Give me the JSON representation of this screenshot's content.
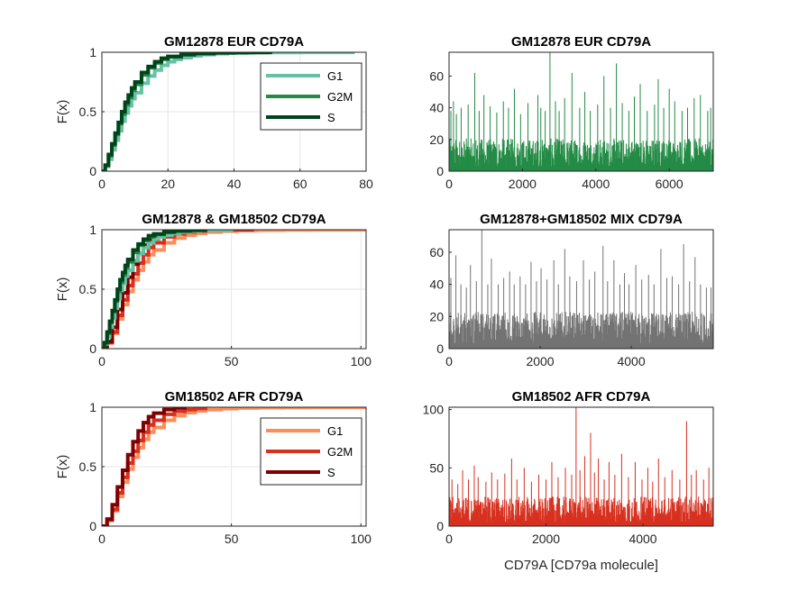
{
  "chart_data": [
    {
      "id": "cdf_eur",
      "type": "line",
      "kind": "ecdf",
      "title": "GM12878 EUR CD79A",
      "xlabel": "",
      "ylabel": "F(x)",
      "xlim": [
        0,
        80
      ],
      "ylim": [
        0,
        1
      ],
      "xticks": [
        0,
        20,
        40,
        60,
        80
      ],
      "yticks": [
        0,
        0.5,
        1
      ],
      "grid": true,
      "legend": "top-right",
      "series": [
        {
          "name": "G1",
          "color": "#66c2a4",
          "x": [
            0,
            1,
            2,
            3,
            4,
            5,
            6,
            7,
            8,
            9,
            10,
            12,
            14,
            16,
            18,
            20,
            22,
            24,
            27,
            30,
            34,
            38,
            44,
            50,
            60,
            70,
            76
          ],
          "y": [
            0,
            0.04,
            0.1,
            0.18,
            0.26,
            0.34,
            0.42,
            0.49,
            0.55,
            0.61,
            0.66,
            0.74,
            0.8,
            0.85,
            0.89,
            0.92,
            0.94,
            0.955,
            0.97,
            0.98,
            0.988,
            0.993,
            0.996,
            0.998,
            0.999,
            0.9995,
            1
          ]
        },
        {
          "name": "G2M",
          "color": "#238b45",
          "x": [
            0,
            1,
            2,
            3,
            4,
            5,
            6,
            7,
            8,
            9,
            10,
            12,
            14,
            16,
            18,
            20,
            24,
            28,
            34,
            40,
            46
          ],
          "y": [
            0,
            0.05,
            0.13,
            0.22,
            0.31,
            0.4,
            0.48,
            0.56,
            0.62,
            0.68,
            0.73,
            0.81,
            0.87,
            0.91,
            0.94,
            0.96,
            0.98,
            0.99,
            0.996,
            0.999,
            1
          ]
        },
        {
          "name": "S",
          "color": "#00441b",
          "x": [
            0,
            1,
            2,
            3,
            4,
            5,
            6,
            7,
            8,
            9,
            10,
            12,
            14,
            16,
            18,
            20,
            24,
            28,
            34,
            40,
            46,
            51
          ],
          "y": [
            0,
            0.05,
            0.14,
            0.23,
            0.32,
            0.41,
            0.5,
            0.58,
            0.64,
            0.7,
            0.75,
            0.83,
            0.88,
            0.92,
            0.95,
            0.965,
            0.98,
            0.99,
            0.995,
            0.998,
            0.999,
            1
          ]
        }
      ]
    },
    {
      "id": "hist_eur",
      "type": "bar",
      "title": "GM12878 EUR CD79A",
      "xlabel": "",
      "xlim": [
        0,
        7200
      ],
      "ylim": [
        0,
        75
      ],
      "xticks": [
        0,
        2000,
        4000,
        6000
      ],
      "yticks": [
        0,
        20,
        40,
        60
      ],
      "color": "#238b45",
      "n_cells": 7200,
      "typical_range": [
        0,
        18
      ],
      "peaks": [
        [
          50,
          38
        ],
        [
          120,
          44
        ],
        [
          200,
          36
        ],
        [
          330,
          40
        ],
        [
          520,
          42
        ],
        [
          700,
          62
        ],
        [
          820,
          38
        ],
        [
          950,
          48
        ],
        [
          1120,
          41
        ],
        [
          1300,
          37
        ],
        [
          1480,
          44
        ],
        [
          1620,
          40
        ],
        [
          1780,
          52
        ],
        [
          1950,
          36
        ],
        [
          2150,
          43
        ],
        [
          2420,
          48
        ],
        [
          2500,
          40
        ],
        [
          2620,
          38
        ],
        [
          2750,
          75
        ],
        [
          2900,
          44
        ],
        [
          3000,
          38
        ],
        [
          3150,
          46
        ],
        [
          3350,
          62
        ],
        [
          3560,
          40
        ],
        [
          3700,
          50
        ],
        [
          3850,
          38
        ],
        [
          4050,
          42
        ],
        [
          4220,
          60
        ],
        [
          4400,
          40
        ],
        [
          4560,
          68
        ],
        [
          4720,
          43
        ],
        [
          4900,
          38
        ],
        [
          5050,
          47
        ],
        [
          5210,
          55
        ],
        [
          5400,
          38
        ],
        [
          5600,
          42
        ],
        [
          5700,
          58
        ],
        [
          5850,
          40
        ],
        [
          6000,
          52
        ],
        [
          6150,
          44
        ],
        [
          6350,
          38
        ],
        [
          6500,
          40
        ],
        [
          6680,
          46
        ],
        [
          6850,
          48
        ],
        [
          7050,
          38
        ],
        [
          7130,
          40
        ]
      ]
    },
    {
      "id": "cdf_mix",
      "type": "line",
      "kind": "ecdf",
      "title": "GM12878 & GM18502 CD79A",
      "xlabel": "",
      "ylabel": "F(x)",
      "xlim": [
        0,
        102
      ],
      "ylim": [
        0,
        1
      ],
      "xticks": [
        0,
        50,
        100
      ],
      "yticks": [
        0,
        0.5,
        1
      ],
      "grid": true,
      "legend": "none",
      "series": [
        {
          "name": "",
          "color": "#fc8d59",
          "x": [
            0,
            2,
            4,
            6,
            8,
            10,
            12,
            14,
            16,
            18,
            20,
            24,
            28,
            32,
            36,
            40,
            46,
            52,
            60,
            70,
            80,
            90,
            102
          ],
          "y": [
            0,
            0.05,
            0.13,
            0.25,
            0.37,
            0.48,
            0.58,
            0.66,
            0.73,
            0.79,
            0.83,
            0.89,
            0.93,
            0.955,
            0.97,
            0.98,
            0.988,
            0.993,
            0.996,
            0.998,
            0.999,
            0.9995,
            1
          ]
        },
        {
          "name": "",
          "color": "#d7301f",
          "x": [
            0,
            2,
            4,
            6,
            8,
            10,
            12,
            14,
            16,
            18,
            20,
            24,
            28,
            32,
            36,
            40,
            46,
            52,
            58
          ],
          "y": [
            0,
            0.05,
            0.14,
            0.28,
            0.41,
            0.53,
            0.63,
            0.72,
            0.79,
            0.85,
            0.89,
            0.94,
            0.965,
            0.98,
            0.99,
            0.995,
            0.998,
            0.999,
            1
          ]
        },
        {
          "name": "",
          "color": "#7f0000",
          "x": [
            0,
            2,
            4,
            6,
            8,
            10,
            12,
            14,
            16,
            18,
            20,
            24,
            28,
            32
          ],
          "y": [
            0,
            0.06,
            0.18,
            0.33,
            0.47,
            0.6,
            0.71,
            0.8,
            0.87,
            0.92,
            0.95,
            0.98,
            0.995,
            1
          ]
        },
        {
          "name": "",
          "color": "#66c2a4",
          "x": [
            0,
            1,
            2,
            3,
            4,
            5,
            6,
            7,
            8,
            9,
            10,
            12,
            14,
            16,
            18,
            20,
            22,
            24,
            27,
            30,
            34,
            38,
            44,
            50
          ],
          "y": [
            0,
            0.04,
            0.1,
            0.18,
            0.26,
            0.34,
            0.42,
            0.49,
            0.55,
            0.61,
            0.66,
            0.74,
            0.8,
            0.85,
            0.89,
            0.92,
            0.94,
            0.955,
            0.97,
            0.98,
            0.988,
            0.993,
            0.996,
            1
          ]
        },
        {
          "name": "",
          "color": "#238b45",
          "x": [
            0,
            1,
            2,
            3,
            4,
            5,
            6,
            7,
            8,
            9,
            10,
            12,
            14,
            16,
            18,
            20,
            24,
            28,
            34,
            40
          ],
          "y": [
            0,
            0.05,
            0.13,
            0.22,
            0.31,
            0.4,
            0.48,
            0.56,
            0.62,
            0.68,
            0.73,
            0.81,
            0.87,
            0.91,
            0.94,
            0.96,
            0.98,
            0.99,
            0.996,
            1
          ]
        },
        {
          "name": "",
          "color": "#00441b",
          "x": [
            0,
            1,
            2,
            3,
            4,
            5,
            6,
            7,
            8,
            9,
            10,
            12,
            14,
            16,
            18,
            20,
            24,
            28,
            34,
            40
          ],
          "y": [
            0,
            0.05,
            0.14,
            0.23,
            0.32,
            0.41,
            0.5,
            0.58,
            0.64,
            0.7,
            0.75,
            0.83,
            0.88,
            0.92,
            0.95,
            0.965,
            0.98,
            0.99,
            0.995,
            1
          ]
        }
      ]
    },
    {
      "id": "hist_mix",
      "type": "bar",
      "title": "GM12878+GM18502 MIX CD79A",
      "xlabel": "",
      "xlim": [
        0,
        5800
      ],
      "ylim": [
        0,
        74
      ],
      "xticks": [
        0,
        2000,
        4000
      ],
      "yticks": [
        0,
        20,
        40,
        60
      ],
      "color": "#737373",
      "n_cells": 5800,
      "typical_range": [
        0,
        20
      ],
      "peaks": [
        [
          40,
          44
        ],
        [
          150,
          58
        ],
        [
          260,
          40
        ],
        [
          380,
          38
        ],
        [
          470,
          52
        ],
        [
          600,
          42
        ],
        [
          720,
          74
        ],
        [
          850,
          40
        ],
        [
          930,
          56
        ],
        [
          1080,
          40
        ],
        [
          1200,
          44
        ],
        [
          1330,
          48
        ],
        [
          1430,
          40
        ],
        [
          1560,
          45
        ],
        [
          1680,
          40
        ],
        [
          1800,
          54
        ],
        [
          1920,
          42
        ],
        [
          2020,
          50
        ],
        [
          2150,
          43
        ],
        [
          2300,
          55
        ],
        [
          2400,
          40
        ],
        [
          2540,
          62
        ],
        [
          2650,
          45
        ],
        [
          2800,
          42
        ],
        [
          2950,
          55
        ],
        [
          3080,
          43
        ],
        [
          3200,
          48
        ],
        [
          3380,
          64
        ],
        [
          3480,
          42
        ],
        [
          3620,
          55
        ],
        [
          3750,
          40
        ],
        [
          3850,
          47
        ],
        [
          3950,
          40
        ],
        [
          4100,
          52
        ],
        [
          4230,
          43
        ],
        [
          4380,
          46
        ],
        [
          4500,
          40
        ],
        [
          4650,
          62
        ],
        [
          4780,
          44
        ],
        [
          4900,
          45
        ],
        [
          5040,
          40
        ],
        [
          5150,
          65
        ],
        [
          5280,
          42
        ],
        [
          5400,
          57
        ],
        [
          5520,
          40
        ],
        [
          5650,
          38
        ],
        [
          5750,
          38
        ]
      ]
    },
    {
      "id": "cdf_afr",
      "type": "line",
      "kind": "ecdf",
      "title": "GM18502 AFR CD79A",
      "xlabel": "",
      "ylabel": "F(x)",
      "xlim": [
        0,
        102
      ],
      "ylim": [
        0,
        1
      ],
      "xticks": [
        0,
        50,
        100
      ],
      "yticks": [
        0,
        0.5,
        1
      ],
      "grid": true,
      "legend": "top-right",
      "series": [
        {
          "name": "G1",
          "color": "#fc8d59",
          "x": [
            0,
            2,
            4,
            6,
            8,
            10,
            12,
            14,
            16,
            18,
            20,
            24,
            28,
            32,
            36,
            40,
            46,
            52,
            60,
            70,
            80,
            90,
            102
          ],
          "y": [
            0,
            0.05,
            0.13,
            0.25,
            0.37,
            0.48,
            0.58,
            0.66,
            0.73,
            0.79,
            0.83,
            0.89,
            0.93,
            0.955,
            0.97,
            0.98,
            0.988,
            0.993,
            0.996,
            0.998,
            0.999,
            0.9995,
            1
          ]
        },
        {
          "name": "G2M",
          "color": "#d7301f",
          "x": [
            0,
            2,
            4,
            6,
            8,
            10,
            12,
            14,
            16,
            18,
            20,
            24,
            28,
            32,
            36,
            40
          ],
          "y": [
            0,
            0.05,
            0.14,
            0.28,
            0.41,
            0.53,
            0.63,
            0.72,
            0.79,
            0.85,
            0.89,
            0.94,
            0.965,
            0.98,
            0.99,
            1
          ]
        },
        {
          "name": "S",
          "color": "#7f0000",
          "x": [
            0,
            2,
            4,
            6,
            8,
            10,
            12,
            14,
            16,
            18,
            20,
            24,
            28,
            32
          ],
          "y": [
            0,
            0.06,
            0.18,
            0.33,
            0.47,
            0.6,
            0.71,
            0.8,
            0.87,
            0.92,
            0.95,
            0.98,
            0.995,
            1
          ]
        }
      ]
    },
    {
      "id": "hist_afr",
      "type": "bar",
      "title": "GM18502 AFR CD79A",
      "xlabel": "CD79A [CD79a molecule]",
      "xlim": [
        0,
        5450
      ],
      "ylim": [
        0,
        102
      ],
      "xticks": [
        0,
        2000,
        4000
      ],
      "yticks": [
        0,
        50,
        100
      ],
      "color": "#d7301f",
      "n_cells": 5450,
      "typical_range": [
        0,
        22
      ],
      "peaks": [
        [
          60,
          40
        ],
        [
          180,
          36
        ],
        [
          280,
          48
        ],
        [
          400,
          40
        ],
        [
          520,
          52
        ],
        [
          600,
          42
        ],
        [
          760,
          38
        ],
        [
          880,
          46
        ],
        [
          1000,
          40
        ],
        [
          1150,
          45
        ],
        [
          1290,
          58
        ],
        [
          1400,
          40
        ],
        [
          1550,
          50
        ],
        [
          1700,
          38
        ],
        [
          1850,
          44
        ],
        [
          2000,
          40
        ],
        [
          2120,
          55
        ],
        [
          2250,
          42
        ],
        [
          2400,
          50
        ],
        [
          2530,
          44
        ],
        [
          2620,
          102
        ],
        [
          2700,
          48
        ],
        [
          2800,
          60
        ],
        [
          2920,
          80
        ],
        [
          3000,
          46
        ],
        [
          3080,
          58
        ],
        [
          3200,
          40
        ],
        [
          3300,
          55
        ],
        [
          3420,
          44
        ],
        [
          3560,
          62
        ],
        [
          3700,
          42
        ],
        [
          3840,
          55
        ],
        [
          3980,
          40
        ],
        [
          4100,
          50
        ],
        [
          4200,
          38
        ],
        [
          4320,
          58
        ],
        [
          4450,
          42
        ],
        [
          4600,
          48
        ],
        [
          4760,
          40
        ],
        [
          4900,
          90
        ],
        [
          5000,
          44
        ],
        [
          5100,
          48
        ],
        [
          5250,
          40
        ],
        [
          5360,
          50
        ]
      ]
    }
  ]
}
